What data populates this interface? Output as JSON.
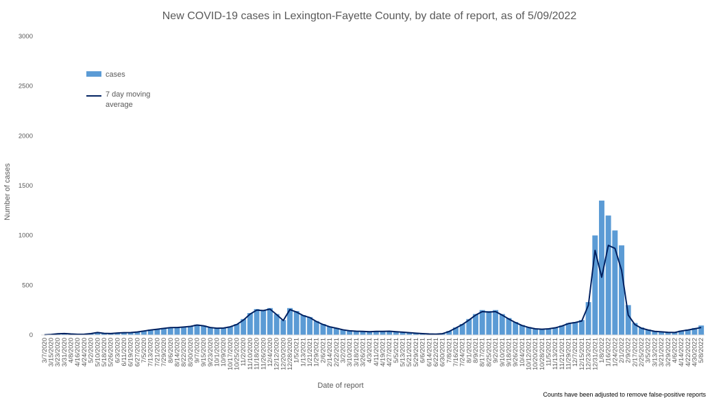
{
  "chart_data": {
    "type": "bar",
    "title": "New COVID-19 cases in Lexington-Fayette County, by date of report, as of 5/09/2022",
    "xlabel": "Date of report",
    "ylabel": "Number of cases",
    "ylim": [
      0,
      3000
    ],
    "yticks": [
      0,
      500,
      1000,
      1500,
      2000,
      2500,
      3000
    ],
    "grid": false,
    "legend_position": "top-left",
    "footnote": "Counts have been adjusted to remove false-positive reports",
    "colors": {
      "bars": "#5b9bd5",
      "line": "#002060"
    },
    "x": [
      "3/7/2020",
      "3/15/2020",
      "3/23/2020",
      "3/31/2020",
      "4/8/2020",
      "4/16/2020",
      "4/24/2020",
      "5/2/2020",
      "5/10/2020",
      "5/18/2020",
      "5/26/2020",
      "6/3/2020",
      "6/11/2020",
      "6/19/2020",
      "6/27/2020",
      "7/5/2020",
      "7/13/2020",
      "7/21/2020",
      "7/29/2020",
      "8/6/2020",
      "8/14/2020",
      "8/22/2020",
      "8/30/2020",
      "9/7/2020",
      "9/15/2020",
      "9/23/2020",
      "10/1/2020",
      "10/9/2020",
      "10/17/2020",
      "10/25/2020",
      "11/2/2020",
      "11/10/2020",
      "11/18/2020",
      "11/26/2020",
      "12/4/2020",
      "12/12/2020",
      "12/20/2020",
      "12/28/2020",
      "1/5/2021",
      "1/13/2021",
      "1/21/2021",
      "1/29/2021",
      "2/6/2021",
      "2/14/2021",
      "2/22/2021",
      "3/2/2021",
      "3/10/2021",
      "3/18/2021",
      "3/26/2021",
      "4/3/2021",
      "4/11/2021",
      "4/19/2021",
      "4/27/2021",
      "5/5/2021",
      "5/13/2021",
      "5/21/2021",
      "5/29/2021",
      "6/6/2021",
      "6/14/2021",
      "6/22/2021",
      "6/30/2021",
      "7/8/2021",
      "7/16/2021",
      "7/24/2021",
      "8/1/2021",
      "8/9/2021",
      "8/17/2021",
      "8/25/2021",
      "9/2/2021",
      "9/10/2021",
      "9/18/2021",
      "9/26/2021",
      "10/4/2021",
      "10/12/2021",
      "10/20/2021",
      "10/28/2021",
      "11/5/2021",
      "11/13/2021",
      "11/21/2021",
      "11/29/2021",
      "12/7/2021",
      "12/15/2021",
      "12/23/2021",
      "12/31/2021",
      "1/8/2022",
      "1/16/2022",
      "1/24/2022",
      "2/1/2022",
      "2/9/2022",
      "2/17/2022",
      "2/25/2022",
      "3/5/2022",
      "3/13/2022",
      "3/21/2022",
      "3/29/2022",
      "4/6/2022",
      "4/14/2022",
      "4/22/2022",
      "4/30/2022",
      "5/8/2022"
    ],
    "series": [
      {
        "name": "cases",
        "type": "bar",
        "values": [
          3,
          6,
          14,
          16,
          11,
          8,
          9,
          16,
          28,
          18,
          16,
          22,
          25,
          26,
          33,
          42,
          55,
          62,
          70,
          78,
          78,
          82,
          90,
          105,
          95,
          78,
          70,
          72,
          85,
          110,
          160,
          220,
          260,
          250,
          270,
          210,
          150,
          270,
          240,
          200,
          180,
          140,
          110,
          85,
          70,
          55,
          45,
          40,
          38,
          35,
          38,
          38,
          40,
          35,
          30,
          25,
          20,
          15,
          12,
          10,
          15,
          40,
          75,
          110,
          160,
          210,
          250,
          240,
          250,
          210,
          170,
          130,
          100,
          80,
          65,
          60,
          65,
          75,
          95,
          120,
          130,
          150,
          330,
          1000,
          1350,
          1200,
          1050,
          900,
          300,
          120,
          75,
          55,
          40,
          35,
          30,
          28,
          45,
          55,
          70,
          95
        ]
      },
      {
        "name": "7 day moving average",
        "type": "line",
        "values": [
          2,
          5,
          12,
          15,
          10,
          7,
          8,
          14,
          25,
          16,
          15,
          20,
          23,
          24,
          30,
          40,
          50,
          58,
          66,
          74,
          75,
          80,
          86,
          100,
          92,
          75,
          68,
          70,
          82,
          105,
          150,
          210,
          250,
          245,
          260,
          205,
          145,
          255,
          230,
          195,
          175,
          135,
          105,
          82,
          68,
          52,
          42,
          38,
          36,
          33,
          36,
          36,
          38,
          33,
          28,
          23,
          18,
          14,
          10,
          9,
          13,
          35,
          70,
          105,
          150,
          200,
          235,
          230,
          235,
          200,
          160,
          125,
          95,
          75,
          62,
          58,
          62,
          72,
          90,
          115,
          125,
          140,
          300,
          850,
          580,
          900,
          870,
          650,
          200,
          105,
          68,
          50,
          36,
          32,
          27,
          25,
          40,
          50,
          62,
          75
        ]
      }
    ]
  }
}
